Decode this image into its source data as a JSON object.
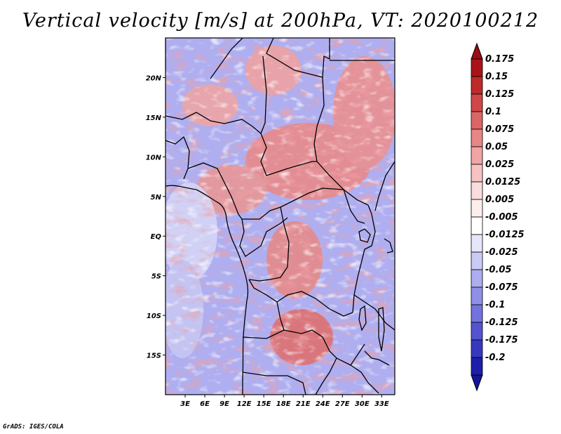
{
  "title": "Vertical velocity [m/s] at 200hPa, VT: 2020100212",
  "credit": "GrADS: IGES/COLA",
  "map": {
    "lon_range": [
      0,
      35
    ],
    "lat_range": [
      -20,
      25
    ],
    "lat_ticks": [
      {
        "lat": 20,
        "label": "20N"
      },
      {
        "lat": 15,
        "label": "15N"
      },
      {
        "lat": 10,
        "label": "10N"
      },
      {
        "lat": 5,
        "label": "5N"
      },
      {
        "lat": 0,
        "label": "EQ"
      },
      {
        "lat": -5,
        "label": "5S"
      },
      {
        "lat": -10,
        "label": "10S"
      },
      {
        "lat": -15,
        "label": "15S"
      }
    ],
    "lon_ticks": [
      {
        "lon": 3,
        "label": "3E"
      },
      {
        "lon": 6,
        "label": "6E"
      },
      {
        "lon": 9,
        "label": "9E"
      },
      {
        "lon": 12,
        "label": "12E"
      },
      {
        "lon": 15,
        "label": "15E"
      },
      {
        "lon": 18,
        "label": "18E"
      },
      {
        "lon": 21,
        "label": "21E"
      },
      {
        "lon": 24,
        "label": "24E"
      },
      {
        "lon": 27,
        "label": "27E"
      },
      {
        "lon": 30,
        "label": "30E"
      },
      {
        "lon": 33,
        "label": "33E"
      }
    ]
  },
  "colorbar": {
    "levels": [
      {
        "label": "0.175",
        "color": "#a8141a"
      },
      {
        "label": "0.15",
        "color": "#bd2a2a"
      },
      {
        "label": "0.125",
        "color": "#cf4747"
      },
      {
        "label": "0.1",
        "color": "#dc6565"
      },
      {
        "label": "0.075",
        "color": "#e88585"
      },
      {
        "label": "0.05",
        "color": "#f0a4a4"
      },
      {
        "label": "0.025",
        "color": "#f6c2c2"
      },
      {
        "label": "0.0125",
        "color": "#fadcdc"
      },
      {
        "label": "0.005",
        "color": "#fdeeee"
      },
      {
        "label": "-0.005",
        "color": "#ffffff"
      },
      {
        "label": "-0.0125",
        "color": "#e6e6fb"
      },
      {
        "label": "-0.025",
        "color": "#cacaf5"
      },
      {
        "label": "-0.05",
        "color": "#adadf0"
      },
      {
        "label": "-0.075",
        "color": "#8f8fe8"
      },
      {
        "label": "-0.1",
        "color": "#7373de"
      },
      {
        "label": "-0.125",
        "color": "#5454d0"
      },
      {
        "label": "-0.175",
        "color": "#3737c0"
      },
      {
        "label": "-0.2",
        "color": "#1e1eaa"
      }
    ],
    "top_color": "#9c0c12",
    "bottom_color": "#14149b"
  }
}
